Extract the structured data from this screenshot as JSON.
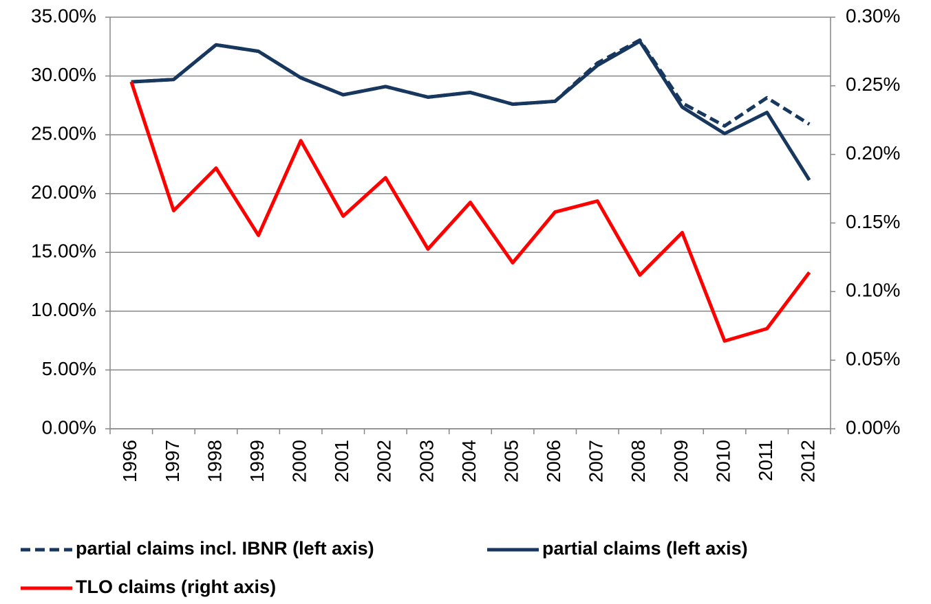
{
  "chart_data": {
    "type": "line",
    "categories": [
      "1996",
      "1997",
      "1998",
      "1999",
      "2000",
      "2001",
      "2002",
      "2003",
      "2004",
      "2005",
      "2006",
      "2007",
      "2008",
      "2009",
      "2010",
      "2011",
      "2012"
    ],
    "series": [
      {
        "name": "partial claims incl. IBNR (left axis)",
        "color": "#17375e",
        "dashed": true,
        "values": [
          29.5,
          29.7,
          32.65,
          32.1,
          29.85,
          28.4,
          29.1,
          28.2,
          28.6,
          27.6,
          27.85,
          31.1,
          33.05,
          27.7,
          25.75,
          28.15,
          25.9
        ]
      },
      {
        "name": "partial claims (left axis)",
        "color": "#17375e",
        "dashed": false,
        "values": [
          29.5,
          29.7,
          32.65,
          32.1,
          29.85,
          28.4,
          29.1,
          28.2,
          28.6,
          27.6,
          27.85,
          30.9,
          32.95,
          27.35,
          25.1,
          26.9,
          21.15
        ]
      },
      {
        "name": "TLO claims (right axis)",
        "color": "#ff0000",
        "dashed": false,
        "axis": "y2",
        "values": [
          0.253,
          0.159,
          0.19,
          0.141,
          0.21,
          0.155,
          0.183,
          0.131,
          0.165,
          0.121,
          0.158,
          0.166,
          0.112,
          0.143,
          0.064,
          0.073,
          0.114
        ]
      }
    ],
    "ylim": [
      0,
      35
    ],
    "yticks": [
      {
        "value": 0,
        "label": "0.00%"
      },
      {
        "value": 5,
        "label": "5.00%"
      },
      {
        "value": 10,
        "label": "10.00%"
      },
      {
        "value": 15,
        "label": "15.00%"
      },
      {
        "value": 20,
        "label": "20.00%"
      },
      {
        "value": 25,
        "label": "25.00%"
      },
      {
        "value": 30,
        "label": "30.00%"
      },
      {
        "value": 35,
        "label": "35.00%"
      }
    ],
    "y2lim": [
      0,
      0.3
    ],
    "y2ticks": [
      {
        "value": 0,
        "label": "0.00%"
      },
      {
        "value": 0.05,
        "label": "0.05%"
      },
      {
        "value": 0.1,
        "label": "0.10%"
      },
      {
        "value": 0.15,
        "label": "0.15%"
      },
      {
        "value": 0.2,
        "label": "0.20%"
      },
      {
        "value": 0.25,
        "label": "0.25%"
      },
      {
        "value": 0.3,
        "label": "0.30%"
      }
    ],
    "grid": true,
    "legend": "bottom"
  }
}
